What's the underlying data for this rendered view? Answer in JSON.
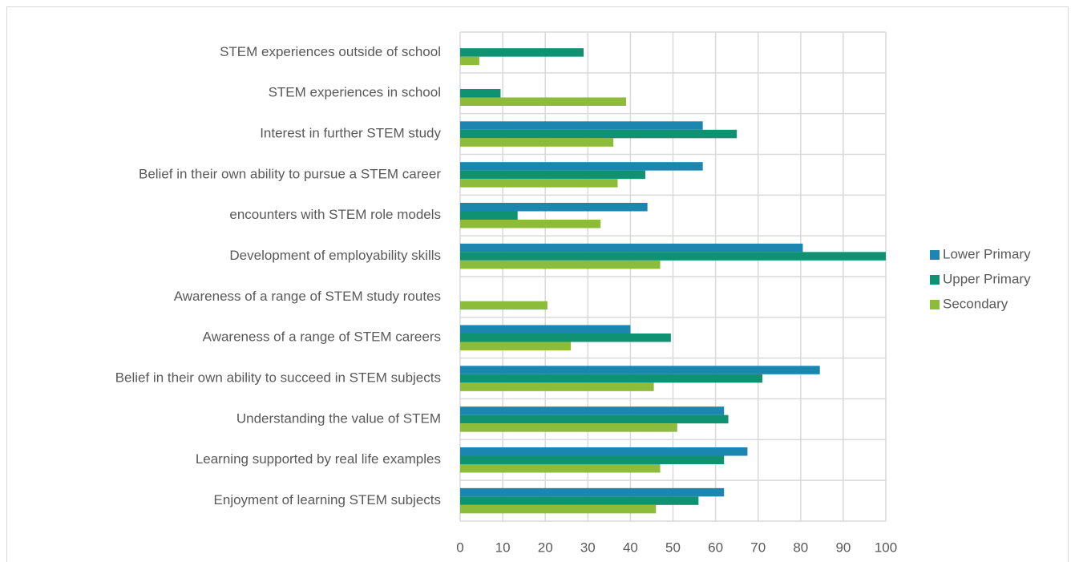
{
  "chart_data": {
    "type": "bar",
    "orientation": "horizontal",
    "categories": [
      "STEM experiences outside of school",
      "STEM experiences in school",
      "Interest in further STEM study",
      "Belief in their own ability to pursue a STEM career",
      "encounters with STEM role models",
      "Development of employability skills",
      "Awareness of a range of STEM study routes",
      "Awareness of a range of STEM careers",
      "Belief in their own ability to succeed in STEM subjects",
      "Understanding the value of STEM",
      "Learning supported by real life examples",
      "Enjoyment of learning STEM subjects"
    ],
    "series": [
      {
        "name": "Lower Primary",
        "color": "#1b87b1",
        "values": [
          null,
          null,
          57,
          57,
          44,
          80.5,
          null,
          40,
          84.5,
          62,
          67.5,
          62
        ]
      },
      {
        "name": "Upper Primary",
        "color": "#0f9271",
        "values": [
          29,
          9.5,
          65,
          43.5,
          13.5,
          100,
          null,
          49.5,
          71,
          63,
          62,
          56
        ]
      },
      {
        "name": "Secondary",
        "color": "#8dbb3a",
        "values": [
          4.5,
          39,
          36,
          37,
          33,
          47,
          20.5,
          26,
          45.5,
          51,
          47,
          46
        ]
      }
    ],
    "xlim": [
      0,
      100
    ],
    "xticks": [
      0,
      10,
      20,
      30,
      40,
      50,
      60,
      70,
      80,
      90,
      100
    ],
    "grid": true,
    "legend": "right"
  }
}
